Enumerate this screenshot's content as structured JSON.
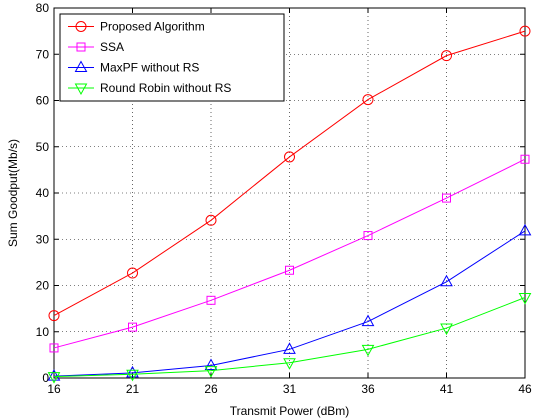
{
  "chart_data": {
    "type": "line",
    "title": "",
    "xlabel": "Transmit Power (dBm)",
    "ylabel": "Sum Goodput(Mb/s)",
    "x": [
      16,
      21,
      26,
      31,
      36,
      41,
      46
    ],
    "xlim": [
      16,
      46
    ],
    "ylim": [
      0,
      80
    ],
    "xticks": [
      16,
      21,
      26,
      31,
      36,
      41,
      46
    ],
    "yticks": [
      0,
      10,
      20,
      30,
      40,
      50,
      60,
      70,
      80
    ],
    "grid": true,
    "legend_position": "top-left",
    "series": [
      {
        "name": "Proposed Algorithm",
        "color": "#ff0000",
        "marker": "circle",
        "values": [
          13.5,
          22.7,
          34.1,
          47.8,
          60.2,
          69.7,
          75.0
        ]
      },
      {
        "name": "SSA",
        "color": "#ff00ff",
        "marker": "square",
        "values": [
          6.5,
          11.0,
          16.8,
          23.3,
          30.8,
          38.9,
          47.3
        ]
      },
      {
        "name": "MaxPF without RS",
        "color": "#0000ff",
        "marker": "triangle-up",
        "values": [
          0.4,
          1.1,
          2.7,
          6.2,
          12.2,
          20.8,
          31.8
        ]
      },
      {
        "name": "Round Robin without RS",
        "color": "#00ff00",
        "marker": "triangle-down",
        "values": [
          0.3,
          0.8,
          1.6,
          3.3,
          6.2,
          10.8,
          17.4
        ]
      }
    ]
  }
}
